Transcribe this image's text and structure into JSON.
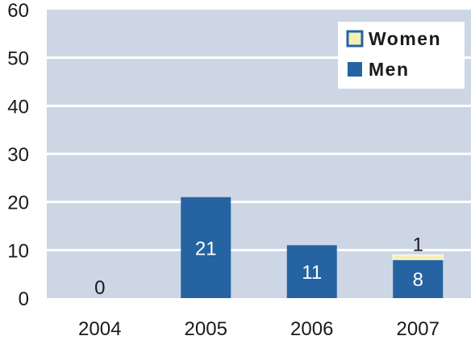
{
  "chart_data": {
    "type": "bar",
    "stacked": true,
    "categories": [
      "2004",
      "2005",
      "2006",
      "2007"
    ],
    "series": [
      {
        "name": "Men",
        "values": [
          0,
          21,
          11,
          8
        ],
        "color": "#2563a2"
      },
      {
        "name": "Women",
        "values": [
          0,
          0,
          0,
          1
        ],
        "color": "#f3efb6"
      }
    ],
    "data_labels": [
      {
        "category": "2004",
        "text": "0",
        "placement": "above"
      },
      {
        "category": "2005",
        "text": "21",
        "placement": "inside"
      },
      {
        "category": "2006",
        "text": "11",
        "placement": "inside"
      },
      {
        "category": "2007",
        "text": "8",
        "placement": "inside"
      },
      {
        "category": "2007",
        "text": "1",
        "placement": "above"
      }
    ],
    "yticks": [
      "0",
      "10",
      "20",
      "30",
      "40",
      "50",
      "60"
    ],
    "ylim": [
      0,
      60
    ],
    "grid": true,
    "legend_position": "top-right",
    "plot_background": "#cdd6e4",
    "grid_color": "#ffffff"
  }
}
